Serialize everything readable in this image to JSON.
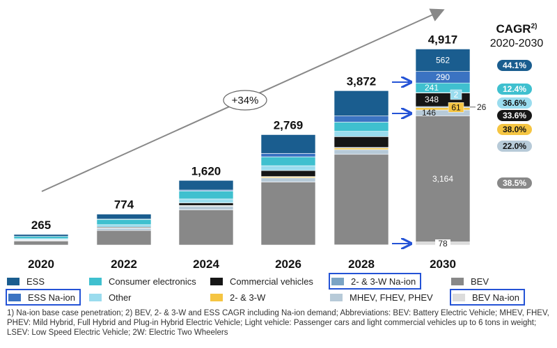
{
  "chart_data": {
    "type": "bar",
    "stacked": true,
    "categories": [
      "2020",
      "2022",
      "2024",
      "2026",
      "2028",
      "2030"
    ],
    "totals": [
      "265",
      "774",
      "1,620",
      "2,769",
      "3,872",
      "4,917"
    ],
    "total_values": [
      265,
      774,
      1620,
      2769,
      3872,
      4917
    ],
    "series": [
      {
        "name": "BEV Na-ion",
        "color": "#dcdcdc",
        "values": [
          0,
          0,
          0,
          0,
          5,
          78
        ]
      },
      {
        "name": "BEV",
        "color": "#888888",
        "values": [
          100,
          365,
          880,
          1580,
          2270,
          3164
        ]
      },
      {
        "name": "MHEV, FHEV, PHEV",
        "color": "#b7cad8",
        "values": [
          24,
          57,
          96,
          105,
          120,
          146
        ]
      },
      {
        "name": "2- & 3-W",
        "color": "#f5c542",
        "values": [
          3,
          8,
          14,
          28,
          40,
          61
        ]
      },
      {
        "name": "2- & 3-W Na-ion",
        "color": "#7aa3c4",
        "values": [
          0,
          0,
          2,
          6,
          14,
          26
        ]
      },
      {
        "name": "Commercial vehicles",
        "color": "#161616",
        "values": [
          8,
          20,
          65,
          150,
          270,
          348
        ]
      },
      {
        "name": "Other",
        "color": "#9adcee",
        "values": [
          26,
          60,
          98,
          121,
          134,
          2
        ]
      },
      {
        "name": "Consumer electronics",
        "color": "#3fc0cf",
        "values": [
          56,
          135,
          200,
          221,
          231,
          241
        ]
      },
      {
        "name": "ESS Na-ion",
        "color": "#3b73c2",
        "values": [
          0,
          5,
          25,
          88,
          155,
          290
        ]
      },
      {
        "name": "ESS",
        "color": "#1a5d8f",
        "values": [
          48,
          124,
          240,
          470,
          633,
          562
        ]
      }
    ],
    "segment_labels_2030": [
      "78",
      "3,164",
      "146",
      "61",
      "26",
      "348",
      "2",
      "241",
      "290",
      "562"
    ],
    "growth_label": "+34%",
    "cagr": {
      "title": "CAGR",
      "footnote_mark": "2)",
      "period": "2020-2030",
      "items": [
        {
          "value": "44.1%",
          "color": "#1a5d8f",
          "text_color": "#ffffff"
        },
        {
          "value": "12.4%",
          "color": "#3fc0cf",
          "text_color": "#ffffff"
        },
        {
          "value": "36.6%",
          "color": "#9adcee",
          "text_color": "#111111"
        },
        {
          "value": "33.6%",
          "color": "#161616",
          "text_color": "#ffffff"
        },
        {
          "value": "38.0%",
          "color": "#f5c542",
          "text_color": "#111111"
        },
        {
          "value": "22.0%",
          "color": "#b7cad8",
          "text_color": "#111111"
        },
        {
          "value": "38.5%",
          "color": "#888888",
          "text_color": "#ffffff"
        }
      ]
    }
  },
  "legend": [
    {
      "label": "ESS",
      "color": "#1a5d8f",
      "boxed": false
    },
    {
      "label": "Consumer electronics",
      "color": "#3fc0cf",
      "boxed": false
    },
    {
      "label": "Commercial vehicles",
      "color": "#161616",
      "boxed": false
    },
    {
      "label": "2- & 3-W Na-ion",
      "color": "#7aa3c4",
      "boxed": true
    },
    {
      "label": "BEV",
      "color": "#888888",
      "boxed": false
    },
    {
      "label": "ESS Na-ion",
      "color": "#3b73c2",
      "boxed": true
    },
    {
      "label": "Other",
      "color": "#9adcee",
      "boxed": false
    },
    {
      "label": "2- & 3-W",
      "color": "#f5c542",
      "boxed": false
    },
    {
      "label": "MHEV, FHEV, PHEV",
      "color": "#b7cad8",
      "boxed": false
    },
    {
      "label": "BEV Na-ion",
      "color": "#dcdcdc",
      "boxed": true
    }
  ],
  "footnote": "1) Na-ion base case penetration; 2) BEV, 2- & 3-W and ESS CAGR including Na-ion demand; Abbreviations: BEV: Battery Electric Vehicle; MHEV, FHEV, PHEV: Mild Hybrid, Full Hybrid and Plug-in Hybrid Electric Vehicle; Light vehicle: Passenger cars and light commercial vehicles up to 6 tons in weight; LSEV: Low Speed Electric Vehicle; 2W: Electric Two Wheelers",
  "accent_color": "#2453d6"
}
